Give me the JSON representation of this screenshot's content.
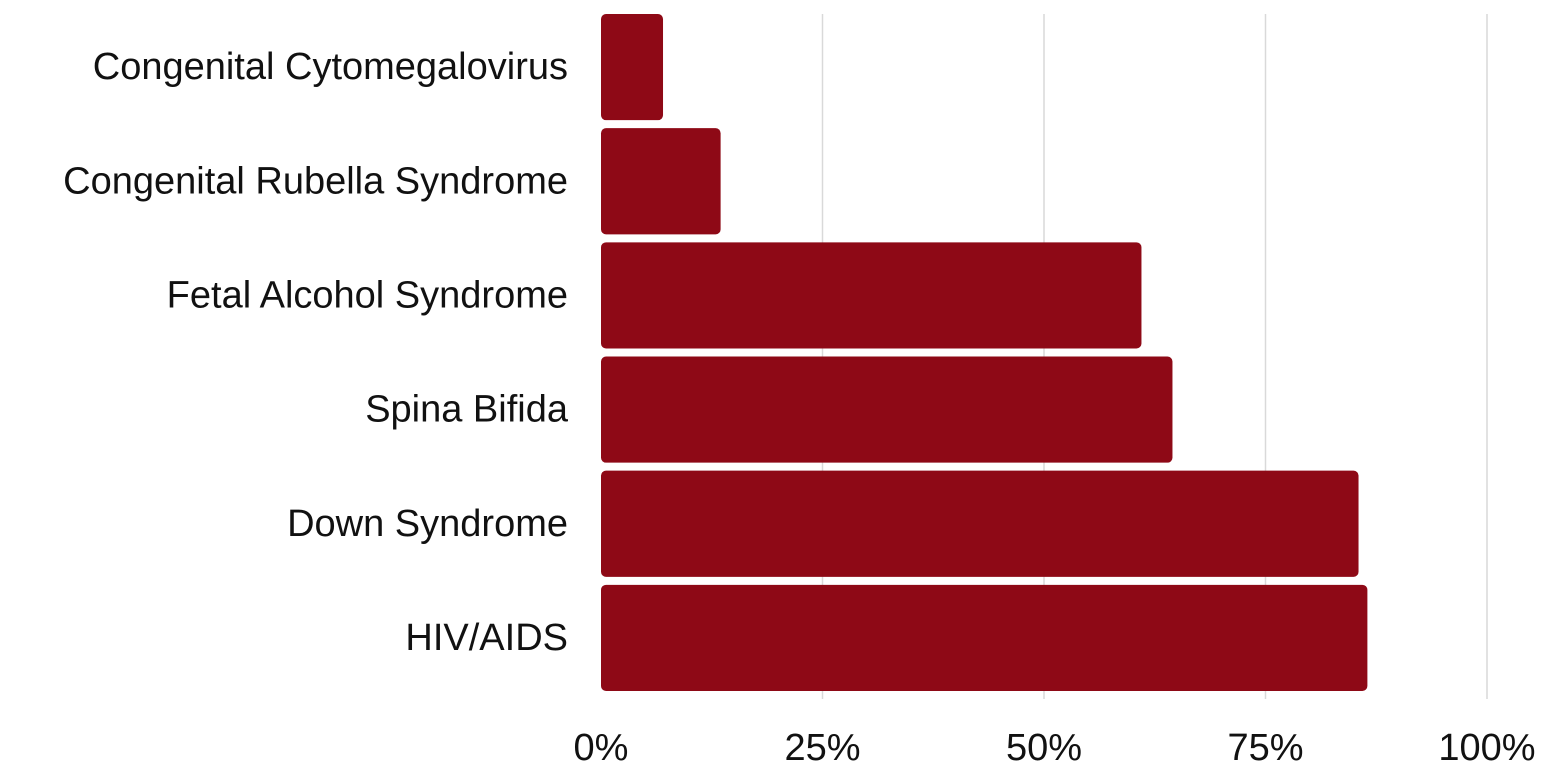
{
  "chart_data": {
    "type": "bar",
    "orientation": "horizontal",
    "categories": [
      "Congenital Cytomegalovirus",
      "Congenital Rubella Syndrome",
      "Fetal Alcohol Syndrome",
      "Spina Bifida",
      "Down Syndrome",
      "HIV/AIDS"
    ],
    "values": [
      0.07,
      0.135,
      0.61,
      0.645,
      0.855,
      0.865
    ],
    "xlim": [
      0,
      1
    ],
    "xticks": [
      0,
      0.25,
      0.5,
      0.75,
      1
    ],
    "xtick_labels": [
      "0%",
      "25%",
      "50%",
      "75%",
      "100%"
    ],
    "grid": "vertical",
    "legend": "none",
    "bar_color": "#8e0916",
    "gridline_color": "#d9d9d9",
    "title": "",
    "xlabel": "",
    "ylabel": ""
  }
}
